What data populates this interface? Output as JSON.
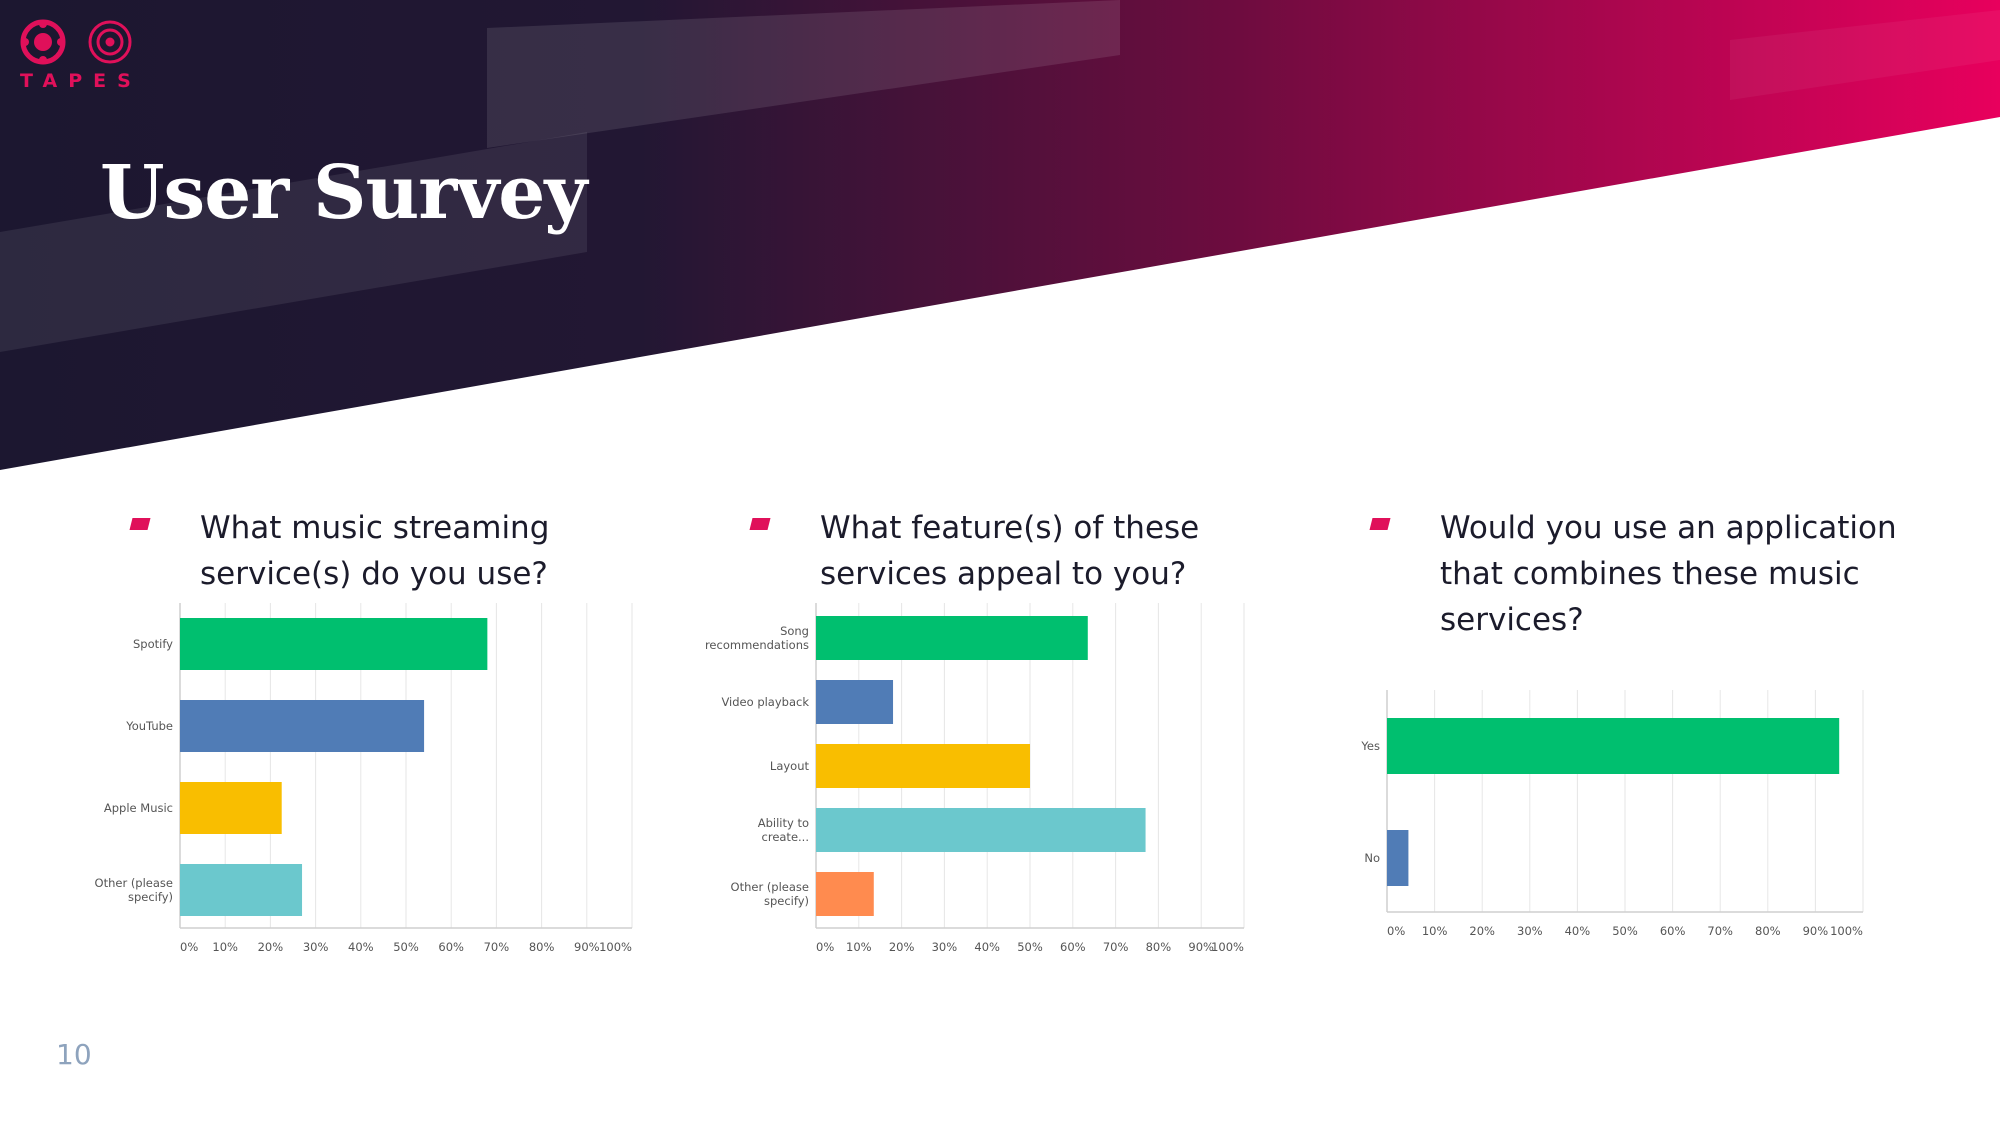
{
  "brand": {
    "name": "TAPES",
    "accent": "#e0105a",
    "dark": "#1c1730"
  },
  "slide": {
    "title": "User Survey",
    "page_number": "10"
  },
  "questions": [
    {
      "text_lines": [
        "What music streaming",
        "service(s) do you use?"
      ]
    },
    {
      "text_lines": [
        "What feature(s) of these",
        "services appeal to you?"
      ]
    },
    {
      "text_lines": [
        "Would you use an application",
        "that combines these music",
        "services?"
      ]
    }
  ],
  "chart_data": [
    {
      "type": "bar",
      "orientation": "horizontal",
      "categories": [
        [
          "Spotify"
        ],
        [
          "YouTube"
        ],
        [
          "Apple Music"
        ],
        [
          "Other (please",
          "specify)"
        ]
      ],
      "values": [
        68,
        54,
        22.5,
        27
      ],
      "colors": [
        "#00bf6f",
        "#507cb6",
        "#f9be00",
        "#6bc8cd"
      ],
      "xlim": [
        0,
        100
      ],
      "ticks": [
        "0%",
        "10%",
        "20%",
        "30%",
        "40%",
        "50%",
        "60%",
        "70%",
        "80%",
        "90%",
        "100%"
      ],
      "grid": true
    },
    {
      "type": "bar",
      "orientation": "horizontal",
      "categories": [
        [
          "Song",
          "recommendations"
        ],
        [
          "Video playback"
        ],
        [
          "Layout"
        ],
        [
          "Ability to",
          "create..."
        ],
        [
          "Other (please",
          "specify)"
        ]
      ],
      "values": [
        63.5,
        18,
        50,
        77,
        13.5
      ],
      "colors": [
        "#00bf6f",
        "#507cb6",
        "#f9be00",
        "#6bc8cd",
        "#ff8b4f"
      ],
      "xlim": [
        0,
        100
      ],
      "ticks": [
        "0%",
        "10%",
        "20%",
        "30%",
        "40%",
        "50%",
        "60%",
        "70%",
        "80%",
        "90%",
        "100%"
      ],
      "grid": true
    },
    {
      "type": "bar",
      "orientation": "horizontal",
      "categories": [
        [
          "Yes"
        ],
        [
          "No"
        ]
      ],
      "values": [
        95,
        4.5
      ],
      "colors": [
        "#00bf6f",
        "#507cb6"
      ],
      "xlim": [
        0,
        100
      ],
      "ticks": [
        "0%",
        "10%",
        "20%",
        "30%",
        "40%",
        "50%",
        "60%",
        "70%",
        "80%",
        "90%",
        "100%"
      ],
      "grid": true
    }
  ]
}
